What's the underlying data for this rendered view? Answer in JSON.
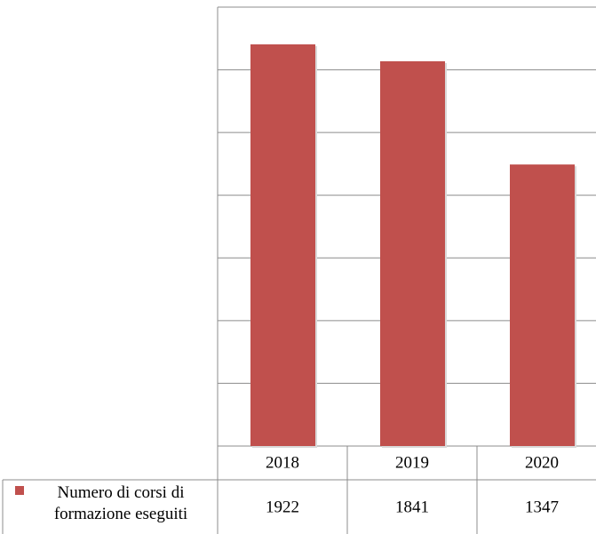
{
  "chart_data": {
    "type": "bar",
    "categories": [
      "2018",
      "2019",
      "2020"
    ],
    "series": [
      {
        "name": "Numero di corsi di formazione eseguiti",
        "color": "#c0504d",
        "values": [
          1922,
          1841,
          1347
        ]
      }
    ],
    "ylim": [
      0,
      2100
    ],
    "yticks": [
      0,
      300,
      600,
      900,
      1200,
      1500,
      1800,
      2100
    ],
    "grid": true
  }
}
